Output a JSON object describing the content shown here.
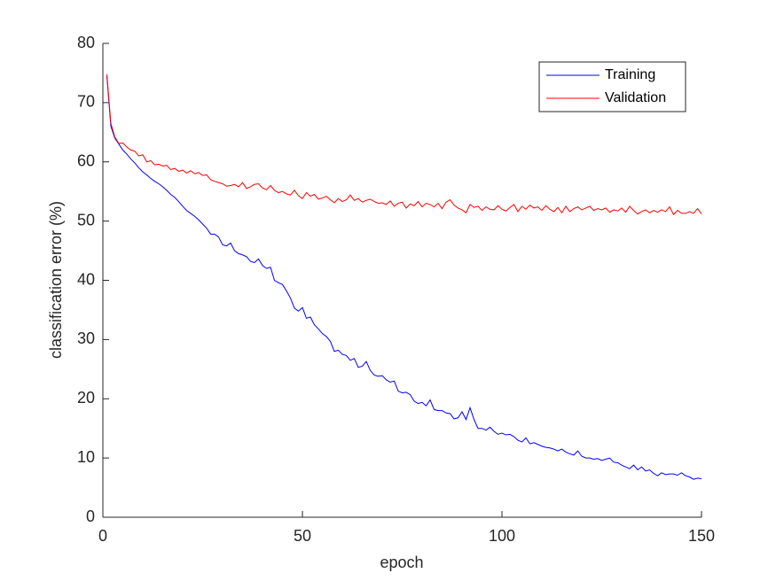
{
  "chart_data": {
    "type": "line",
    "x_label": "epoch",
    "y_label": "classification error (%)",
    "xlim": [
      0,
      150
    ],
    "xticks": [
      0,
      50,
      100,
      150
    ],
    "ylim": [
      0,
      80
    ],
    "yticks": [
      0,
      10,
      20,
      30,
      40,
      50,
      60,
      70,
      80
    ],
    "legend": "northeast",
    "grid": false,
    "x": [
      1,
      2,
      3,
      4,
      5,
      6,
      7,
      8,
      9,
      10,
      11,
      12,
      13,
      14,
      15,
      16,
      17,
      18,
      19,
      20,
      21,
      22,
      23,
      24,
      25,
      26,
      27,
      28,
      29,
      30,
      31,
      32,
      33,
      34,
      35,
      36,
      37,
      38,
      39,
      40,
      41,
      42,
      43,
      44,
      45,
      46,
      47,
      48,
      49,
      50,
      51,
      52,
      53,
      54,
      55,
      56,
      57,
      58,
      59,
      60,
      61,
      62,
      63,
      64,
      65,
      66,
      67,
      68,
      69,
      70,
      71,
      72,
      73,
      74,
      75,
      76,
      77,
      78,
      79,
      80,
      81,
      82,
      83,
      84,
      85,
      86,
      87,
      88,
      89,
      90,
      91,
      92,
      93,
      94,
      95,
      96,
      97,
      98,
      99,
      100,
      101,
      102,
      103,
      104,
      105,
      106,
      107,
      108,
      109,
      110,
      111,
      112,
      113,
      114,
      115,
      116,
      117,
      118,
      119,
      120,
      121,
      122,
      123,
      124,
      125,
      126,
      127,
      128,
      129,
      130,
      131,
      132,
      133,
      134,
      135,
      136,
      137,
      138,
      139,
      140,
      141,
      142,
      143,
      144,
      145,
      146,
      147,
      148,
      149,
      150
    ],
    "series": [
      {
        "name": "Training",
        "color": "#0000ff",
        "values": [
          74.5,
          66,
          64,
          63,
          62,
          61.3,
          60.5,
          59.8,
          59,
          58.3,
          57.8,
          57.2,
          56.7,
          56.3,
          55.8,
          55.2,
          54.5,
          54,
          53.3,
          52.5,
          51.8,
          51.3,
          50.8,
          50.2,
          49.5,
          48.8,
          47.8,
          47.8,
          47.3,
          46,
          45.8,
          46.3,
          45,
          44.5,
          44.3,
          44,
          43.2,
          43,
          43.6,
          42.5,
          42,
          42.2,
          40,
          39.6,
          39.3,
          38.2,
          37,
          35.3,
          34.8,
          35.4,
          33.6,
          33.8,
          32.5,
          31.8,
          31,
          30.5,
          29.7,
          28,
          28.2,
          27.5,
          27.3,
          26.5,
          26.8,
          25.3,
          25.5,
          26.3,
          24.8,
          24,
          23.8,
          23.9,
          23.2,
          22.8,
          23,
          21.3,
          21,
          21.1,
          20.7,
          19.6,
          19.2,
          19.4,
          18.8,
          19.8,
          18.2,
          18,
          18,
          17.6,
          17.5,
          16.6,
          16.8,
          17.8,
          16.5,
          18.5,
          16.5,
          15,
          15,
          14.7,
          15.2,
          14.5,
          14,
          14.2,
          13.9,
          14,
          13.6,
          13,
          12.7,
          13.4,
          12.4,
          12.6,
          12.3,
          12,
          11.8,
          11.7,
          11.5,
          11.2,
          11.5,
          11,
          10.7,
          10.5,
          11.2,
          10.3,
          10,
          10,
          9.8,
          9.9,
          9.6,
          9.8,
          10,
          9.3,
          9.2,
          8.8,
          8.5,
          8.2,
          8.8,
          8,
          8.5,
          7.8,
          8,
          7.4,
          7,
          7.5,
          7.2,
          7.3,
          7.3,
          7.1,
          7.5,
          7,
          6.8,
          6.4,
          6.6,
          6.5
        ]
      },
      {
        "name": "Validation",
        "color": "#ff0000",
        "values": [
          74.8,
          66.5,
          64.2,
          63.1,
          63.2,
          62.5,
          62,
          61.8,
          61,
          61.2,
          60,
          60.2,
          59.5,
          59.6,
          59.3,
          59.4,
          58.7,
          58.9,
          58.4,
          58.6,
          58.1,
          58.5,
          58,
          58.2,
          57.7,
          57.8,
          57,
          56.7,
          56.5,
          56.3,
          55.9,
          56,
          56.2,
          55.8,
          56.5,
          55.5,
          55.8,
          56.2,
          56.3,
          55.6,
          55.3,
          56,
          55.2,
          54.8,
          55,
          54.6,
          54.4,
          55.2,
          54.3,
          53.8,
          54.8,
          54.2,
          54.5,
          53.7,
          53.9,
          54.2,
          53.6,
          53.1,
          53.8,
          53.3,
          53.6,
          54.4,
          53.5,
          53.8,
          53.2,
          53.5,
          53.7,
          53.3,
          53,
          53.1,
          52.8,
          53.4,
          52.5,
          53,
          53.2,
          52.2,
          52.9,
          52.6,
          53.3,
          52.4,
          53,
          52.8,
          52.4,
          53,
          52.1,
          53.2,
          53.6,
          52.7,
          52.2,
          51.9,
          51.4,
          52.8,
          52.3,
          52.5,
          51.8,
          52.4,
          52,
          51.9,
          52.6,
          52,
          51.7,
          52.3,
          52.8,
          51.6,
          52.5,
          52,
          52.7,
          52.2,
          52.4,
          51.8,
          52.6,
          52,
          51.6,
          52.3,
          51.4,
          52.5,
          51.6,
          52.1,
          52.4,
          51.9,
          52.2,
          52.5,
          51.8,
          52.1,
          51.9,
          52.2,
          51.5,
          51.9,
          51.7,
          52.2,
          51.5,
          52.5,
          51.8,
          51.2,
          51.6,
          51.9,
          51.4,
          51.8,
          51.5,
          51.9,
          51.6,
          52.4,
          51.1,
          51.8,
          51.3,
          51.3,
          51.6,
          51.3,
          52.1,
          51.2
        ]
      }
    ]
  }
}
